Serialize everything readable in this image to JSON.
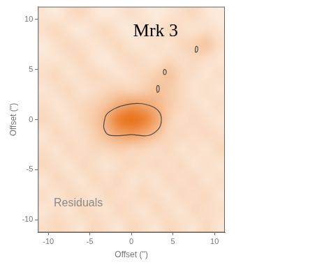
{
  "chart_data": {
    "type": "heatmap",
    "title": "Mrk 3",
    "annotations": [
      "Residuals"
    ],
    "xlabel": "Offset ('')",
    "ylabel": "Offset ('')",
    "xlim": [
      -11.25,
      11.25
    ],
    "ylim": [
      -11.25,
      11.25
    ],
    "xticks": [
      -10,
      -5,
      0,
      5,
      10
    ],
    "yticks": [
      -10,
      -5,
      0,
      5,
      10
    ],
    "grid": false,
    "color": "#e86e14",
    "x": [
      -10.5,
      -9,
      -7.5,
      -6,
      -4.5,
      -3,
      -1.5,
      0,
      1.5,
      3,
      4.5,
      6,
      7.5,
      9,
      10.5
    ],
    "y": [
      10.5,
      9,
      7.5,
      6,
      4.5,
      3,
      1.5,
      0,
      -1.5,
      -3,
      -4.5,
      -6,
      -7.5,
      -9,
      -10.5
    ],
    "cells": [
      [
        0.2,
        0.15,
        0.25,
        0.3,
        0.2,
        0.15,
        0.2,
        0.25,
        0.2,
        0.15,
        0.2,
        0.25,
        0.3,
        0.2,
        0.15
      ],
      [
        0.25,
        0.3,
        0.2,
        0.15,
        0.25,
        0.3,
        0.2,
        0.15,
        0.25,
        0.2,
        0.3,
        0.25,
        0.2,
        0.25,
        0.2
      ],
      [
        0.15,
        0.25,
        0.3,
        0.25,
        0.2,
        0.25,
        0.3,
        0.2,
        0.2,
        0.25,
        0.2,
        0.3,
        0.35,
        0.45,
        0.25
      ],
      [
        0.2,
        0.2,
        0.25,
        0.3,
        0.2,
        0.15,
        0.25,
        0.3,
        0.25,
        0.2,
        0.3,
        0.25,
        0.3,
        0.25,
        0.2
      ],
      [
        0.25,
        0.3,
        0.2,
        0.25,
        0.3,
        0.25,
        0.2,
        0.25,
        0.3,
        0.35,
        0.45,
        0.3,
        0.25,
        0.2,
        0.25
      ],
      [
        0.2,
        0.25,
        0.3,
        0.2,
        0.25,
        0.3,
        0.35,
        0.3,
        0.35,
        0.45,
        0.4,
        0.3,
        0.2,
        0.25,
        0.2
      ],
      [
        0.25,
        0.2,
        0.25,
        0.3,
        0.35,
        0.45,
        0.6,
        0.7,
        0.65,
        0.55,
        0.4,
        0.3,
        0.25,
        0.2,
        0.25
      ],
      [
        0.3,
        0.25,
        0.2,
        0.3,
        0.4,
        0.6,
        0.9,
        1.0,
        0.9,
        0.65,
        0.35,
        0.25,
        0.3,
        0.25,
        0.2
      ],
      [
        0.2,
        0.3,
        0.25,
        0.25,
        0.35,
        0.5,
        0.65,
        0.7,
        0.6,
        0.45,
        0.3,
        0.3,
        0.25,
        0.3,
        0.25
      ],
      [
        0.25,
        0.2,
        0.3,
        0.25,
        0.3,
        0.3,
        0.35,
        0.3,
        0.3,
        0.25,
        0.3,
        0.2,
        0.25,
        0.2,
        0.3
      ],
      [
        0.3,
        0.25,
        0.2,
        0.3,
        0.25,
        0.2,
        0.25,
        0.3,
        0.25,
        0.3,
        0.25,
        0.3,
        0.2,
        0.25,
        0.2
      ],
      [
        0.2,
        0.3,
        0.25,
        0.2,
        0.3,
        0.25,
        0.3,
        0.2,
        0.25,
        0.2,
        0.3,
        0.25,
        0.3,
        0.2,
        0.25
      ],
      [
        0.25,
        0.2,
        0.3,
        0.25,
        0.2,
        0.3,
        0.25,
        0.25,
        0.3,
        0.25,
        0.2,
        0.3,
        0.25,
        0.3,
        0.2
      ],
      [
        0.2,
        0.25,
        0.2,
        0.3,
        0.25,
        0.2,
        0.3,
        0.25,
        0.2,
        0.3,
        0.25,
        0.2,
        0.3,
        0.25,
        0.25
      ],
      [
        0.25,
        0.3,
        0.25,
        0.2,
        0.3,
        0.25,
        0.2,
        0.3,
        0.25,
        0.2,
        0.3,
        0.25,
        0.2,
        0.3,
        0.2
      ]
    ],
    "contours": [
      [
        [
          -3.3,
          -0.3
        ],
        [
          -3.0,
          0.5
        ],
        [
          -2.0,
          1.1
        ],
        [
          -0.5,
          1.5
        ],
        [
          1.0,
          1.6
        ],
        [
          2.5,
          1.3
        ],
        [
          3.4,
          0.7
        ],
        [
          3.6,
          -0.2
        ],
        [
          3.2,
          -1.0
        ],
        [
          2.0,
          -1.6
        ],
        [
          0.0,
          -1.5
        ],
        [
          -1.5,
          -1.6
        ],
        [
          -2.8,
          -1.5
        ],
        [
          -3.3,
          -0.9
        ]
      ],
      [
        [
          3.1,
          2.7
        ],
        [
          3.3,
          2.8
        ],
        [
          3.35,
          3.2
        ],
        [
          3.2,
          3.4
        ],
        [
          3.05,
          3.2
        ]
      ],
      [
        [
          3.9,
          4.5
        ],
        [
          4.1,
          4.5
        ],
        [
          4.2,
          4.8
        ],
        [
          4.0,
          5.0
        ],
        [
          3.85,
          4.8
        ]
      ],
      [
        [
          7.7,
          6.7
        ],
        [
          7.9,
          6.75
        ],
        [
          8.0,
          7.1
        ],
        [
          7.85,
          7.3
        ],
        [
          7.7,
          7.1
        ]
      ]
    ]
  }
}
